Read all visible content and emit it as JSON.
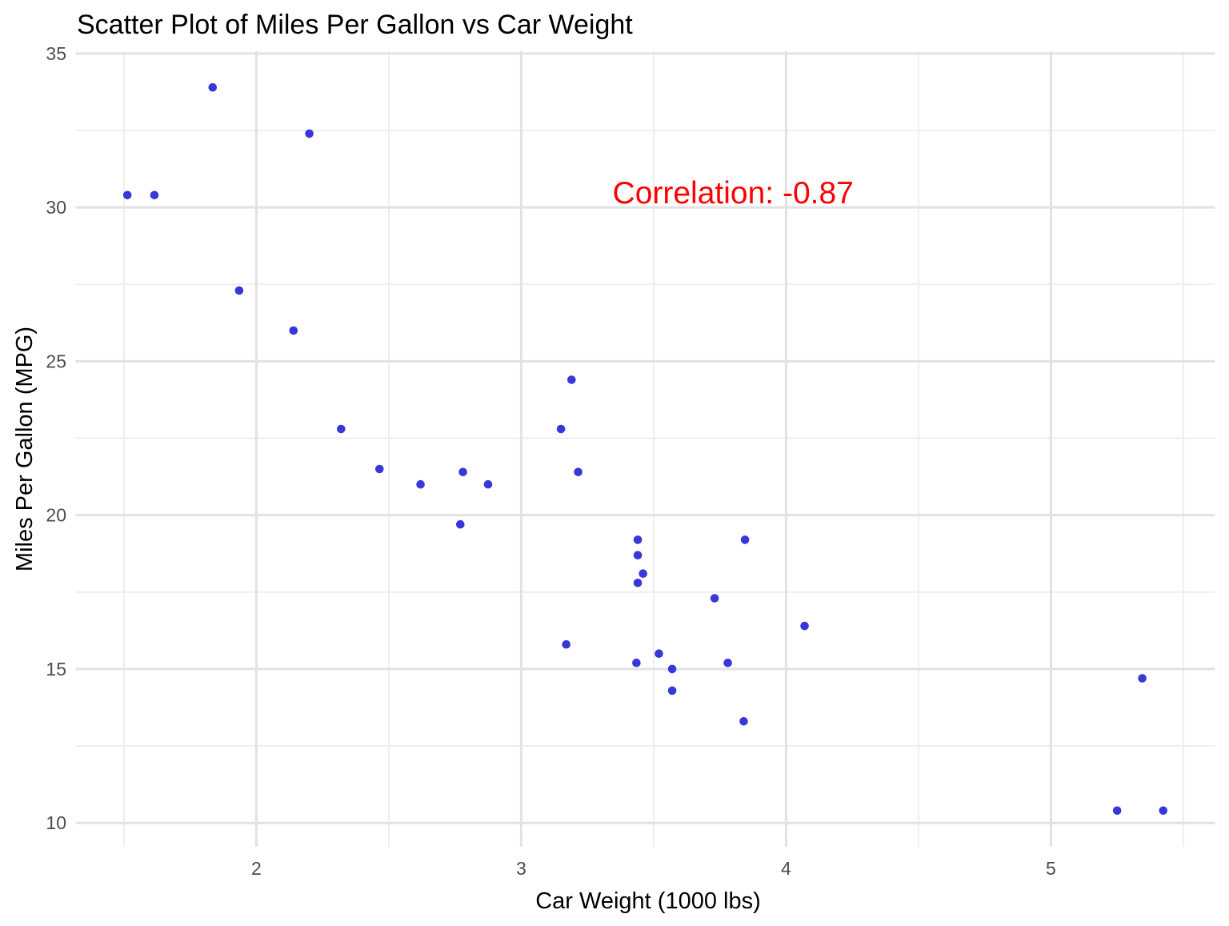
{
  "chart_data": {
    "type": "scatter",
    "title": "Scatter Plot of Miles Per Gallon vs Car Weight",
    "xlabel": "Car Weight (1000 lbs)",
    "ylabel": "Miles Per Gallon (MPG)",
    "annotation": {
      "text": "Correlation: -0.87",
      "x": 3.8,
      "y": 30.5
    },
    "x_ticks": [
      2,
      3,
      4,
      5
    ],
    "y_ticks": [
      10,
      15,
      20,
      25,
      30,
      35
    ],
    "x_minor": [
      1.5,
      2.5,
      3.5,
      4.5,
      5.5
    ],
    "y_minor": [
      12.5,
      17.5,
      22.5,
      27.5,
      32.5
    ],
    "xlim": [
      1.3175,
      5.6195
    ],
    "ylim": [
      9.225,
      35.075
    ],
    "grid": "major-minor",
    "legend": "none",
    "points": [
      {
        "x": 2.62,
        "y": 21.0
      },
      {
        "x": 2.875,
        "y": 21.0
      },
      {
        "x": 2.32,
        "y": 22.8
      },
      {
        "x": 3.215,
        "y": 21.4
      },
      {
        "x": 3.44,
        "y": 18.7
      },
      {
        "x": 3.46,
        "y": 18.1
      },
      {
        "x": 3.57,
        "y": 14.3
      },
      {
        "x": 3.19,
        "y": 24.4
      },
      {
        "x": 3.15,
        "y": 22.8
      },
      {
        "x": 3.44,
        "y": 19.2
      },
      {
        "x": 3.44,
        "y": 17.8
      },
      {
        "x": 4.07,
        "y": 16.4
      },
      {
        "x": 3.73,
        "y": 17.3
      },
      {
        "x": 3.78,
        "y": 15.2
      },
      {
        "x": 5.25,
        "y": 10.4
      },
      {
        "x": 5.424,
        "y": 10.4
      },
      {
        "x": 5.345,
        "y": 14.7
      },
      {
        "x": 2.2,
        "y": 32.4
      },
      {
        "x": 1.615,
        "y": 30.4
      },
      {
        "x": 1.835,
        "y": 33.9
      },
      {
        "x": 2.465,
        "y": 21.5
      },
      {
        "x": 3.52,
        "y": 15.5
      },
      {
        "x": 3.435,
        "y": 15.2
      },
      {
        "x": 3.84,
        "y": 13.3
      },
      {
        "x": 3.845,
        "y": 19.2
      },
      {
        "x": 1.935,
        "y": 27.3
      },
      {
        "x": 2.14,
        "y": 26.0
      },
      {
        "x": 1.513,
        "y": 30.4
      },
      {
        "x": 3.17,
        "y": 15.8
      },
      {
        "x": 2.77,
        "y": 19.7
      },
      {
        "x": 3.57,
        "y": 15.0
      },
      {
        "x": 2.78,
        "y": 21.4
      }
    ],
    "colors": {
      "point": "#3838d8",
      "grid_major": "#e2e2e2",
      "grid_minor": "#ededed",
      "tick_text": "#4d4d4d",
      "text": "#000000",
      "annotation": "#ff0000",
      "background": "#ffffff"
    }
  }
}
